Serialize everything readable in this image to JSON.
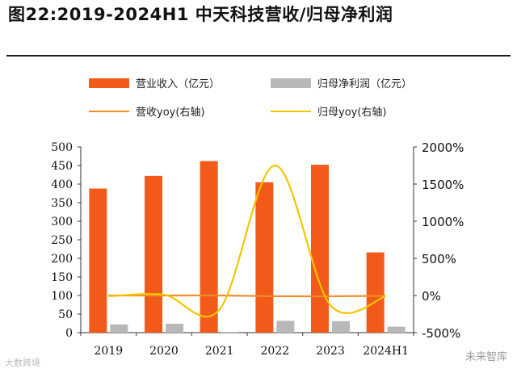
{
  "title": "图22:2019-2024H1 中天科技营收/归母净利润",
  "chart_data": {
    "type": "bar",
    "categories": [
      "2019",
      "2020",
      "2021",
      "2022",
      "2023",
      "2024H1"
    ],
    "series": [
      {
        "name": "营业收入（亿元）",
        "kind": "bar",
        "axis": "left",
        "values": [
          388,
          422,
          462,
          405,
          452,
          216
        ],
        "color": "#f25a1a"
      },
      {
        "name": "归母净利润（亿元）",
        "kind": "bar",
        "axis": "left",
        "values": [
          22,
          24,
          2,
          32,
          31,
          16
        ],
        "color": "#b8b8b8"
      },
      {
        "name": "营收yoy(右轴)",
        "kind": "line",
        "axis": "right",
        "values": [
          0,
          0,
          0,
          -10,
          -10,
          -5
        ],
        "color": "#f28c28"
      },
      {
        "name": "归母yoy(右轴)",
        "kind": "line",
        "axis": "right",
        "values": [
          -10,
          10,
          -190,
          1750,
          -130,
          -10
        ],
        "color": "#f5c400"
      }
    ],
    "y_left": {
      "min": 0,
      "max": 500,
      "ticks": [
        "0",
        "50",
        "100",
        "150",
        "200",
        "250",
        "300",
        "350",
        "400",
        "450",
        "500"
      ]
    },
    "y_right": {
      "min": -500,
      "max": 2000,
      "ticks": [
        "-500%",
        "0%",
        "500%",
        "1000%",
        "1500%",
        "2000%"
      ]
    },
    "legend": [
      {
        "label": "营业收入（亿元）",
        "shape": "bar",
        "color": "#f25a1a"
      },
      {
        "label": "归母净利润（亿元）",
        "shape": "bar",
        "color": "#b8b8b8"
      },
      {
        "label": "营收yoy(右轴)",
        "shape": "line",
        "color": "#f28c28"
      },
      {
        "label": "归母yoy(右轴)",
        "shape": "line",
        "color": "#f5c400"
      }
    ],
    "legend_position": "top",
    "grid": false
  },
  "watermarks": {
    "left": "大数跨境",
    "right": "未来智库"
  }
}
